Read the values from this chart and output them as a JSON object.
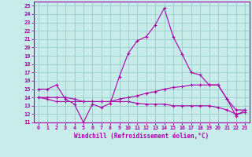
{
  "background_color": "#c8ecea",
  "line_color": "#aa00aa",
  "grid_color": "#99cccc",
  "xlabel": "Windchill (Refroidissement éolien,°C)",
  "xlim": [
    -0.5,
    23.5
  ],
  "ylim": [
    11,
    25.5
  ],
  "yticks": [
    11,
    12,
    13,
    14,
    15,
    16,
    17,
    18,
    19,
    20,
    21,
    22,
    23,
    24,
    25
  ],
  "xticks": [
    0,
    1,
    2,
    3,
    4,
    5,
    6,
    7,
    8,
    9,
    10,
    11,
    12,
    13,
    14,
    15,
    16,
    17,
    18,
    19,
    20,
    21,
    22,
    23
  ],
  "series": [
    [
      15.0,
      15.0,
      15.5,
      13.8,
      13.2,
      11.0,
      13.2,
      12.8,
      13.3,
      16.5,
      19.3,
      20.8,
      21.3,
      22.7,
      24.7,
      21.3,
      19.2,
      17.0,
      16.7,
      15.5,
      15.5,
      13.8,
      11.8,
      12.5
    ],
    [
      14.0,
      13.8,
      13.5,
      13.5,
      13.5,
      13.5,
      13.5,
      13.5,
      13.5,
      13.8,
      14.0,
      14.2,
      14.5,
      14.7,
      15.0,
      15.2,
      15.3,
      15.5,
      15.5,
      15.5,
      15.5,
      13.8,
      12.5,
      12.5
    ],
    [
      14.0,
      14.0,
      14.0,
      14.0,
      13.8,
      13.5,
      13.5,
      13.5,
      13.5,
      13.5,
      13.5,
      13.3,
      13.2,
      13.2,
      13.2,
      13.0,
      13.0,
      13.0,
      13.0,
      13.0,
      12.8,
      12.5,
      12.0,
      12.2
    ]
  ]
}
